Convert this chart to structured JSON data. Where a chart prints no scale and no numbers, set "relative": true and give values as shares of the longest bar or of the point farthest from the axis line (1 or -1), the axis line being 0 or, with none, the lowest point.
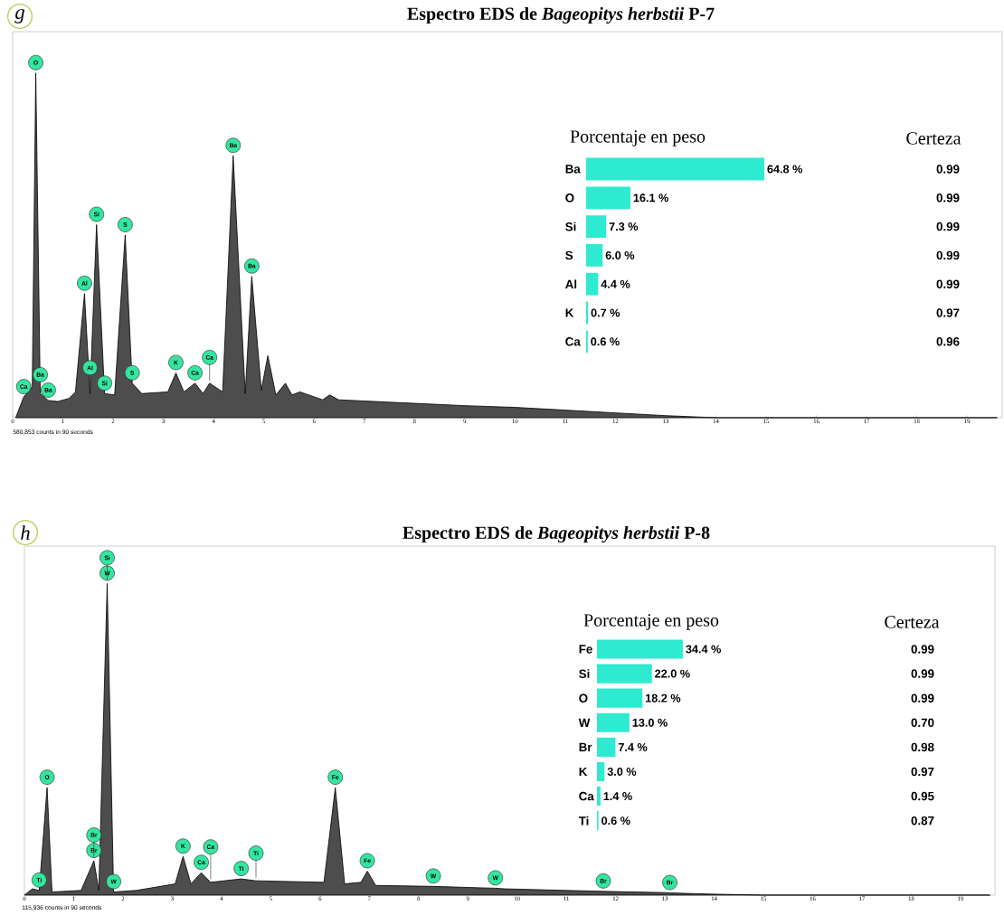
{
  "chart_data": [
    {
      "type": "area",
      "title": "Espectro EDS de *Bageopitys herbstii* P-7",
      "relative": true,
      "color": "#4d4d4d",
      "x": [
        0.06,
        0.22,
        0.39,
        0.46,
        0.55,
        0.71,
        0.9,
        1.12,
        1.25,
        1.43,
        1.54,
        1.67,
        1.83,
        2.03,
        2.24,
        2.38,
        2.57,
        3.09,
        3.25,
        3.41,
        3.63,
        3.79,
        3.92,
        4.18,
        4.39,
        4.63,
        4.76,
        4.95,
        5.08,
        5.24,
        5.43,
        5.56,
        5.72,
        6.17,
        6.31,
        6.49,
        7.5,
        9,
        10,
        11,
        12,
        13,
        14,
        19.6
      ],
      "values": [
        0,
        0.06,
        0.09,
        1.0,
        0.07,
        0.05,
        0.047,
        0.056,
        0.075,
        0.36,
        0.07,
        0.56,
        0.07,
        0.066,
        0.53,
        0.1,
        0.07,
        0.075,
        0.13,
        0.075,
        0.1,
        0.07,
        0.1,
        0.075,
        0.76,
        0.07,
        0.41,
        0.08,
        0.18,
        0.066,
        0.1,
        0.066,
        0.075,
        0.052,
        0.066,
        0.052,
        0.045,
        0.035,
        0.03,
        0.022,
        0.014,
        0.006,
        0,
        0
      ],
      "xlim": [
        0,
        19.7
      ],
      "xticks": [
        0,
        1,
        2,
        3,
        4,
        5,
        6,
        7,
        8,
        9,
        10,
        11,
        12,
        13,
        14,
        15,
        16,
        17,
        18,
        19
      ],
      "annotations": [
        "g",
        "580,853 counts in 90 seconds",
        {
          "text": "O",
          "x": 0.46,
          "y": 1.0
        },
        {
          "text": "Ba",
          "x": 4.39,
          "y": 0.76
        },
        {
          "text": "Si",
          "x": 1.67,
          "y": 0.56
        },
        {
          "text": "S",
          "x": 2.24,
          "y": 0.53
        },
        {
          "text": "Al",
          "x": 1.43,
          "y": 0.36
        },
        {
          "text": "Ba",
          "x": 4.76,
          "y": 0.41
        },
        {
          "text": "Ca",
          "x": 0.22,
          "y": 0.06
        },
        {
          "text": "Ba",
          "x": 0.71,
          "y": 0.05
        },
        {
          "text": "Ba",
          "x": 0.55,
          "y": 0.07
        },
        {
          "text": "Si",
          "x": 1.83,
          "y": 0.07
        },
        {
          "text": "Al",
          "x": 1.54,
          "y": 0.07
        },
        {
          "text": "S",
          "x": 2.38,
          "y": 0.1
        },
        {
          "text": "K",
          "x": 3.25,
          "y": 0.13
        },
        {
          "text": "Ca",
          "x": 3.63,
          "y": 0.1
        },
        {
          "text": "Ca",
          "x": 3.92,
          "y": 0.1
        }
      ]
    },
    {
      "type": "bar",
      "orientation": "horizontal",
      "title": "Porcentaje en peso",
      "tick_labels": "y",
      "color": "#2eead0",
      "categories": [
        "Ba",
        "O",
        "Si",
        "S",
        "Al",
        "K",
        "Ca"
      ],
      "values": [
        64.8,
        16.1,
        7.3,
        6.0,
        4.4,
        0.7,
        0.6
      ],
      "value_labels": [
        "64.8 %",
        "16.1 %",
        "7.3 %",
        "6.0 %",
        "4.4 %",
        "0.7 %",
        "0.6 %"
      ]
    },
    {
      "type": "other",
      "title": "Certeza",
      "annotations": [
        "0.99",
        "0.99",
        "0.99",
        "0.99",
        "0.99",
        "0.97",
        "0.96"
      ]
    },
    {
      "type": "area",
      "title": "Espectro EDS de *Bageopitys herbstii* P-8",
      "relative": true,
      "color": "#4d4d4d",
      "x": [
        0,
        0.16,
        0.3,
        0.46,
        0.56,
        1.15,
        1.41,
        1.51,
        1.68,
        1.81,
        2.27,
        3.06,
        3.22,
        3.38,
        3.59,
        3.78,
        4.4,
        4.7,
        6.08,
        6.31,
        6.5,
        6.83,
        6.96,
        7.13,
        8.3,
        8.71,
        9.56,
        9.76,
        11,
        11.75,
        13,
        13.1,
        14,
        15,
        19.6
      ],
      "values": [
        0,
        0.02,
        0.015,
        0.345,
        0.01,
        0.015,
        0.11,
        0.015,
        1.0,
        0.01,
        0.015,
        0.036,
        0.124,
        0.036,
        0.072,
        0.041,
        0.052,
        0.046,
        0.041,
        0.345,
        0.036,
        0.041,
        0.077,
        0.031,
        0.028,
        0.026,
        0.022,
        0.02,
        0.015,
        0.012,
        0.008,
        0.007,
        0.003,
        0,
        0
      ],
      "xlim": [
        0,
        19.7
      ],
      "xticks": [
        0,
        1,
        2,
        3,
        4,
        5,
        6,
        7,
        8,
        9,
        10,
        11,
        12,
        13,
        14,
        15,
        16,
        17,
        18,
        19
      ],
      "annotations": [
        "h",
        "115,936 counts in 90 seconds",
        {
          "text": "W",
          "x": 1.68,
          "y": 1.0
        },
        {
          "text": "Si",
          "x": 1.68,
          "y": 1.0
        },
        {
          "text": "O",
          "x": 0.46,
          "y": 0.345
        },
        {
          "text": "Fe",
          "x": 6.31,
          "y": 0.345
        },
        {
          "text": "Br",
          "x": 1.41,
          "y": 0.11
        },
        {
          "text": "Br",
          "x": 1.41,
          "y": 0.11
        },
        {
          "text": "W",
          "x": 1.81,
          "y": 0.01
        },
        {
          "text": "K",
          "x": 3.22,
          "y": 0.124
        },
        {
          "text": "Ca",
          "x": 3.59,
          "y": 0.072
        },
        {
          "text": "Ca",
          "x": 3.78,
          "y": 0.041
        },
        {
          "text": "Ti",
          "x": 4.4,
          "y": 0.052
        },
        {
          "text": "Ti",
          "x": 4.7,
          "y": 0.046
        },
        {
          "text": "Ti",
          "x": 0.3,
          "y": 0.015
        },
        {
          "text": "Fe",
          "x": 6.96,
          "y": 0.077
        },
        {
          "text": "W",
          "x": 8.3,
          "y": 0.028
        },
        {
          "text": "W",
          "x": 9.56,
          "y": 0.022
        },
        {
          "text": "Br",
          "x": 11.75,
          "y": 0.012
        },
        {
          "text": "Br",
          "x": 13.1,
          "y": 0.007
        }
      ]
    },
    {
      "type": "bar",
      "orientation": "horizontal",
      "title": "Porcentaje en peso",
      "tick_labels": "y",
      "color": "#2eead0",
      "categories": [
        "Fe",
        "Si",
        "O",
        "W",
        "Br",
        "K",
        "Ca",
        "Ti"
      ],
      "values": [
        34.4,
        22.0,
        18.2,
        13.0,
        7.4,
        3.0,
        1.4,
        0.6
      ],
      "value_labels": [
        "34.4 %",
        "22.0 %",
        "18.2 %",
        "13.0 %",
        "7.4 %",
        "3.0 %",
        "1.4 %",
        "0.6 %"
      ]
    },
    {
      "type": "other",
      "title": "Certeza",
      "annotations": [
        "0.99",
        "0.99",
        "0.99",
        "0.70",
        "0.98",
        "0.97",
        "0.95",
        "0.87"
      ]
    }
  ]
}
